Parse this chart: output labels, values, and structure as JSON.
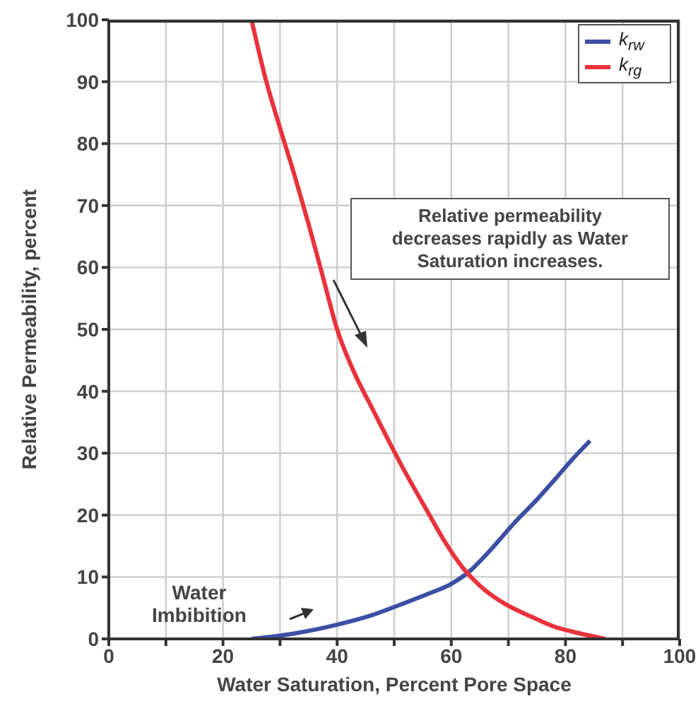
{
  "chart_data": {
    "type": "line",
    "xlabel": "Water Saturation, Percent Pore Space",
    "ylabel": "Relative Permeability, percent",
    "xlim": [
      0,
      100
    ],
    "ylim": [
      0,
      100
    ],
    "xticks": [
      0,
      {
        "value": 10,
        "label": null
      },
      20,
      {
        "value": 30,
        "label": null
      },
      40,
      {
        "value": 50,
        "label": null
      },
      60,
      {
        "value": 70,
        "label": null
      },
      80,
      {
        "value": 90,
        "label": null
      },
      100
    ],
    "yticks": [
      0,
      10,
      20,
      30,
      40,
      50,
      60,
      70,
      80,
      90,
      100
    ],
    "grid": true,
    "legend": "top right",
    "marker": "none",
    "line_style": "solid",
    "annotations": [
      "Relative permeability decreases rapidly as Water Saturation increases.",
      "Water Imbibition"
    ],
    "series": [
      {
        "name": "k$_{rw}$",
        "color": "#3c4fa3",
        "x": [
          25,
          32,
          40,
          46,
          51,
          56,
          60,
          63.3,
          67,
          71,
          75,
          78,
          81,
          84.3
        ],
        "values": [
          0,
          0.8,
          2.3,
          3.8,
          5.5,
          7.3,
          8.9,
          11,
          14.5,
          18.7,
          22.5,
          25.6,
          28.8,
          32
        ]
      },
      {
        "name": "k$_{rg}$",
        "color": "#e8323c",
        "x": [
          25,
          27.6,
          30,
          32.5,
          35,
          37.5,
          40,
          43,
          46,
          51,
          56,
          59,
          62,
          64,
          66,
          69.5,
          74,
          78,
          82,
          87
        ],
        "values": [
          100,
          90,
          82.5,
          75,
          67,
          58.5,
          50,
          43,
          37.5,
          28.5,
          20.3,
          15.5,
          11.5,
          9.5,
          7.8,
          5.6,
          3.6,
          2,
          1,
          0
        ]
      }
    ]
  }
}
